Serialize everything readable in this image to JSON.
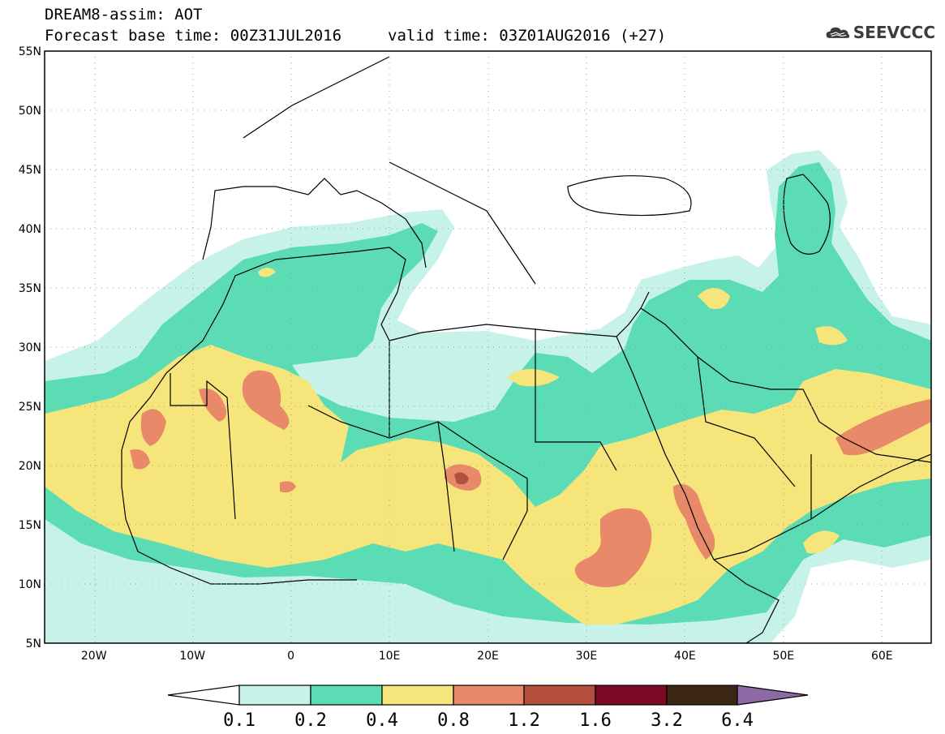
{
  "header": {
    "title": "DREAM8-assim: AOT",
    "base_time": "Forecast base time: 00Z31JUL2016",
    "valid_time": "valid time: 03Z01AUG2016 (+27)",
    "logo_text": "SEEVCCC",
    "logo_icon": "cloud-icon"
  },
  "map": {
    "lon_range": [
      -25,
      65
    ],
    "lat_range": [
      5,
      55
    ],
    "lat_ticks": [
      {
        "value": 55,
        "label": "55N"
      },
      {
        "value": 50,
        "label": "50N"
      },
      {
        "value": 45,
        "label": "45N"
      },
      {
        "value": 40,
        "label": "40N"
      },
      {
        "value": 35,
        "label": "35N"
      },
      {
        "value": 30,
        "label": "30N"
      },
      {
        "value": 25,
        "label": "25N"
      },
      {
        "value": 20,
        "label": "20N"
      },
      {
        "value": 15,
        "label": "15N"
      },
      {
        "value": 10,
        "label": "10N"
      },
      {
        "value": 5,
        "label": "5N"
      }
    ],
    "lon_ticks": [
      {
        "value": -20,
        "label": "20W"
      },
      {
        "value": -10,
        "label": "10W"
      },
      {
        "value": 0,
        "label": "0"
      },
      {
        "value": 10,
        "label": "10E"
      },
      {
        "value": 20,
        "label": "20E"
      },
      {
        "value": 30,
        "label": "30E"
      },
      {
        "value": 40,
        "label": "40E"
      },
      {
        "value": 50,
        "label": "50E"
      },
      {
        "value": 60,
        "label": "60E"
      }
    ],
    "grid": "dotted"
  },
  "colorbar": {
    "labels": [
      "0.1",
      "0.2",
      "0.4",
      "0.8",
      "1.2",
      "1.6",
      "3.2",
      "6.4"
    ],
    "colors": {
      "below": "#ffffff",
      "c1": "#c7f2ea",
      "c2": "#5bdcb4",
      "c3": "#f6e57a",
      "c4": "#e8896a",
      "c5": "#b44f3e",
      "c6": "#7b0a24",
      "c7": "#3c2614",
      "above": "#8d6aa6"
    }
  }
}
